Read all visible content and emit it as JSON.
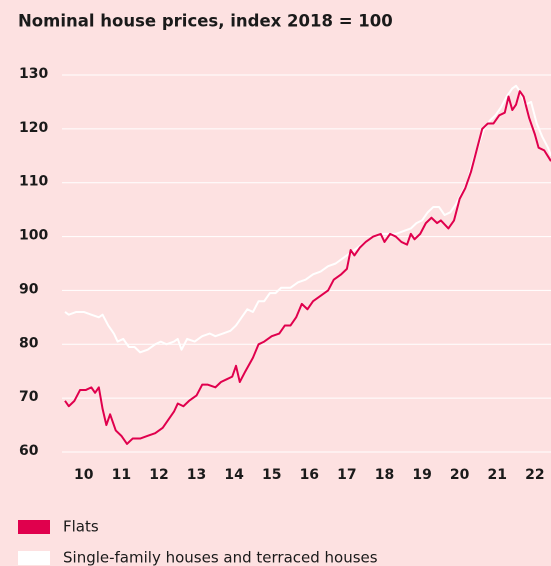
{
  "chart_data": {
    "type": "line",
    "title": "Nominal house prices, index 2018 = 100",
    "xlim": [
      2010,
      2022.93
    ],
    "ylim": [
      60,
      130
    ],
    "yticks": [
      60,
      70,
      80,
      90,
      100,
      110,
      120,
      130
    ],
    "xticks": [
      {
        "value": 2010.5,
        "label": "10"
      },
      {
        "value": 2011.5,
        "label": "11"
      },
      {
        "value": 2012.5,
        "label": "12"
      },
      {
        "value": 2013.5,
        "label": "13"
      },
      {
        "value": 2014.5,
        "label": "14"
      },
      {
        "value": 2015.5,
        "label": "15"
      },
      {
        "value": 2016.5,
        "label": "16"
      },
      {
        "value": 2017.5,
        "label": "17"
      },
      {
        "value": 2018.5,
        "label": "18"
      },
      {
        "value": 2019.5,
        "label": "19"
      },
      {
        "value": 2020.5,
        "label": "20"
      },
      {
        "value": 2021.5,
        "label": "21"
      },
      {
        "value": 2022.5,
        "label": "22"
      }
    ],
    "grid": true,
    "series": [
      {
        "name": "Single-family houses and terraced houses",
        "color": "#ffffff",
        "x": [
          2010.0,
          2010.1,
          2010.3,
          2010.5,
          2010.7,
          2010.9,
          2011.0,
          2011.15,
          2011.3,
          2011.4,
          2011.55,
          2011.7,
          2011.85,
          2012.0,
          2012.2,
          2012.4,
          2012.55,
          2012.7,
          2012.9,
          2013.0,
          2013.1,
          2013.25,
          2013.45,
          2013.65,
          2013.85,
          2014.0,
          2014.2,
          2014.4,
          2014.55,
          2014.7,
          2014.85,
          2015.0,
          2015.15,
          2015.3,
          2015.45,
          2015.6,
          2015.75,
          2016.0,
          2016.2,
          2016.4,
          2016.6,
          2016.8,
          2017.0,
          2017.2,
          2017.4,
          2017.6,
          2017.8,
          2018.0,
          2018.2,
          2018.4,
          2018.6,
          2018.8,
          2019.0,
          2019.2,
          2019.35,
          2019.5,
          2019.65,
          2019.8,
          2019.95,
          2020.1,
          2020.25,
          2020.4,
          2020.55,
          2020.7,
          2020.85,
          2021.0,
          2021.15,
          2021.3,
          2021.45,
          2021.6,
          2021.75,
          2021.9,
          2022.0,
          2022.1,
          2022.25,
          2022.4,
          2022.55,
          2022.7,
          2022.85,
          2022.93
        ],
        "values": [
          86,
          85.5,
          86,
          86,
          85.5,
          85,
          85.5,
          83.5,
          82,
          80.5,
          81,
          79.5,
          79.5,
          78.5,
          79,
          80,
          80.5,
          80,
          80.5,
          81,
          79,
          81,
          80.5,
          81.5,
          82,
          81.5,
          82,
          82.5,
          83.5,
          85,
          86.5,
          86,
          88,
          88,
          89.5,
          89.5,
          90.5,
          90.5,
          91.5,
          92,
          93,
          93.5,
          94.5,
          95,
          96,
          97,
          98,
          99,
          100,
          100.5,
          100.5,
          100.5,
          101,
          101.5,
          102.5,
          103,
          104.5,
          105.5,
          105.5,
          104,
          104.5,
          106,
          108,
          110,
          114,
          117,
          120,
          121.5,
          122.5,
          124,
          126,
          127.5,
          128,
          127,
          124.5,
          125,
          121,
          118.5,
          116.5,
          115
        ]
      },
      {
        "name": "Flats",
        "color": "#e0004d",
        "x": [
          2010.0,
          2010.1,
          2010.25,
          2010.4,
          2010.55,
          2010.7,
          2010.8,
          2010.9,
          2011.0,
          2011.1,
          2011.2,
          2011.35,
          2011.5,
          2011.65,
          2011.8,
          2012.0,
          2012.2,
          2012.4,
          2012.6,
          2012.75,
          2012.9,
          2013.0,
          2013.15,
          2013.3,
          2013.5,
          2013.65,
          2013.8,
          2014.0,
          2014.15,
          2014.3,
          2014.45,
          2014.55,
          2014.65,
          2014.8,
          2015.0,
          2015.15,
          2015.3,
          2015.5,
          2015.7,
          2015.85,
          2016.0,
          2016.15,
          2016.3,
          2016.45,
          2016.6,
          2016.8,
          2017.0,
          2017.15,
          2017.35,
          2017.5,
          2017.6,
          2017.7,
          2017.85,
          2018.0,
          2018.2,
          2018.4,
          2018.5,
          2018.65,
          2018.8,
          2018.95,
          2019.1,
          2019.2,
          2019.3,
          2019.45,
          2019.6,
          2019.75,
          2019.9,
          2020.0,
          2020.2,
          2020.35,
          2020.5,
          2020.65,
          2020.8,
          2020.95,
          2021.1,
          2021.25,
          2021.4,
          2021.55,
          2021.7,
          2021.8,
          2021.9,
          2022.0,
          2022.1,
          2022.2,
          2022.35,
          2022.5,
          2022.6,
          2022.75,
          2022.93
        ],
        "values": [
          69.5,
          68.5,
          69.5,
          71.5,
          71.5,
          72,
          71,
          72,
          68,
          65,
          67,
          64,
          63,
          61.5,
          62.5,
          62.5,
          63,
          63.5,
          64.5,
          66,
          67.5,
          69,
          68.5,
          69.5,
          70.5,
          72.5,
          72.5,
          72,
          73,
          73.5,
          74,
          76,
          73,
          75,
          77.5,
          80,
          80.5,
          81.5,
          82,
          83.5,
          83.5,
          85,
          87.5,
          86.5,
          88,
          89,
          90,
          92,
          93,
          94,
          97.5,
          96.5,
          98,
          99,
          100,
          100.5,
          99,
          100.5,
          100,
          99,
          98.5,
          100.5,
          99.5,
          100.5,
          102.5,
          103.5,
          102.5,
          103,
          101.5,
          103,
          107,
          109,
          112,
          116,
          120,
          121,
          121,
          122.5,
          123,
          126,
          123.5,
          124.5,
          127,
          126,
          122,
          119,
          116.5,
          116,
          114
        ]
      }
    ]
  }
}
